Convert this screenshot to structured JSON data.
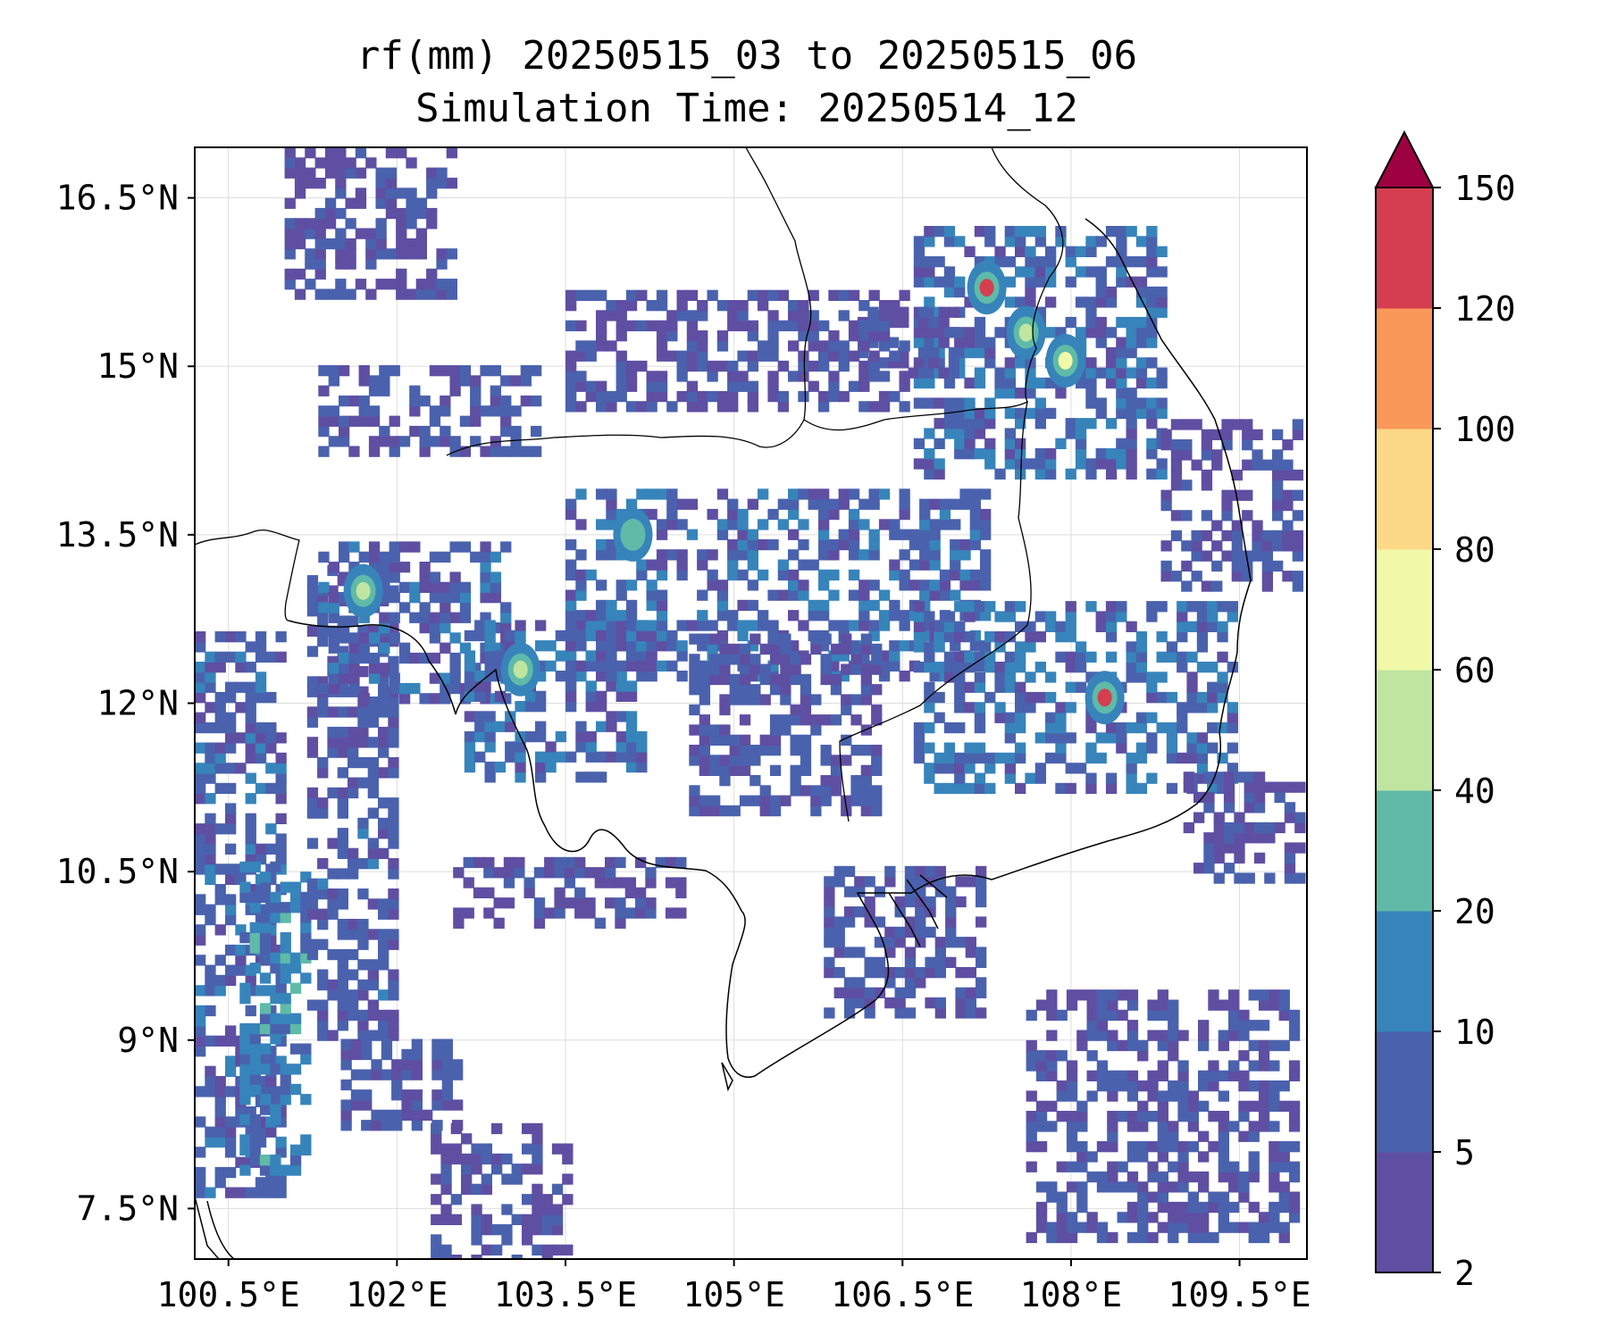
{
  "title": {
    "line1": "rf(mm) 20250515_03 to 20250515_06",
    "line2": "Simulation Time: 20250514_12"
  },
  "map": {
    "lon_range": [
      100.2,
      110.1
    ],
    "lat_range": [
      7.05,
      16.95
    ],
    "x_ticks": [
      "100.5°E",
      "102°E",
      "103.5°E",
      "105°E",
      "106.5°E",
      "108°E",
      "109.5°E"
    ],
    "x_tick_values": [
      100.5,
      102,
      103.5,
      105,
      106.5,
      108,
      109.5
    ],
    "y_ticks": [
      "7.5°N",
      "9°N",
      "10.5°N",
      "12°N",
      "13.5°N",
      "15°N",
      "16.5°N"
    ],
    "y_tick_values": [
      7.5,
      9,
      10.5,
      12,
      13.5,
      15,
      16.5
    ],
    "gridlines": true
  },
  "colorbar": {
    "label_values": [
      "2",
      "5",
      "10",
      "20",
      "40",
      "60",
      "80",
      "100",
      "120",
      "150"
    ],
    "colors": [
      "#5e4fa2",
      "#4a62ad",
      "#3784bb",
      "#5fbaa8",
      "#bfe5a0",
      "#f1f9a9",
      "#fbd986",
      "#f99858",
      "#d53e4f",
      "#9e0142"
    ],
    "extend": "max"
  },
  "chart_data": {
    "type": "heatmap",
    "variable": "rf(mm)",
    "title": "rf(mm) 20250515_03 to 20250515_06",
    "subtitle": "Simulation Time: 20250514_12",
    "levels": [
      2,
      5,
      10,
      20,
      40,
      60,
      80,
      100,
      120,
      150
    ],
    "xlim": [
      100.2,
      110.1
    ],
    "ylim": [
      7.05,
      16.95
    ],
    "peak_cells": [
      {
        "lon": 107.25,
        "lat": 15.7,
        "value": 130
      },
      {
        "lon": 107.95,
        "lat": 15.05,
        "value": 70
      },
      {
        "lon": 107.6,
        "lat": 15.3,
        "value": 50
      },
      {
        "lon": 108.3,
        "lat": 12.05,
        "value": 130
      },
      {
        "lon": 103.1,
        "lat": 12.3,
        "value": 50
      },
      {
        "lon": 101.7,
        "lat": 13.0,
        "value": 40
      },
      {
        "lon": 104.1,
        "lat": 13.5,
        "value": 30
      }
    ],
    "rain_regions": [
      {
        "lon": [
          100.2,
          101.0
        ],
        "lat": [
          7.6,
          12.6
        ],
        "value": 8
      },
      {
        "lon": [
          100.6,
          101.2
        ],
        "lat": [
          7.8,
          10.5
        ],
        "value": 15
      },
      {
        "lon": [
          101.2,
          102.0
        ],
        "lat": [
          9.0,
          13.2
        ],
        "value": 7
      },
      {
        "lon": [
          101.3,
          103.0
        ],
        "lat": [
          12.0,
          13.4
        ],
        "value": 8
      },
      {
        "lon": [
          102.6,
          104.2
        ],
        "lat": [
          11.3,
          12.7
        ],
        "value": 9
      },
      {
        "lon": [
          103.5,
          107.2
        ],
        "lat": [
          12.2,
          13.9
        ],
        "value": 9
      },
      {
        "lon": [
          104.6,
          106.3
        ],
        "lat": [
          11.0,
          12.6
        ],
        "value": 6
      },
      {
        "lon": [
          106.6,
          109.4
        ],
        "lat": [
          11.2,
          12.9
        ],
        "value": 10
      },
      {
        "lon": [
          106.6,
          108.8
        ],
        "lat": [
          14.0,
          16.2
        ],
        "value": 9
      },
      {
        "lon": [
          106.1,
          107.0
        ],
        "lat": [
          14.9,
          15.5
        ],
        "value": 6
      },
      {
        "lon": [
          107.6,
          110.0
        ],
        "lat": [
          7.2,
          9.4
        ],
        "value": 6
      },
      {
        "lon": [
          101.3,
          103.2
        ],
        "lat": [
          14.2,
          15.0
        ],
        "value": 6
      },
      {
        "lon": [
          102.5,
          104.5
        ],
        "lat": [
          10.0,
          10.6
        ],
        "value": 5
      },
      {
        "lon": [
          105.8,
          107.2
        ],
        "lat": [
          9.2,
          10.5
        ],
        "value": 6
      },
      {
        "lon": [
          101.0,
          102.5
        ],
        "lat": [
          15.6,
          16.9
        ],
        "value": 5
      },
      {
        "lon": [
          103.5,
          106.5
        ],
        "lat": [
          14.6,
          15.6
        ],
        "value": 5
      },
      {
        "lon": [
          102.3,
          103.5
        ],
        "lat": [
          7.0,
          8.2
        ],
        "value": 5
      },
      {
        "lon": [
          101.5,
          102.5
        ],
        "lat": [
          8.2,
          9.0
        ],
        "value": 6
      },
      {
        "lon": [
          109.0,
          110.0
        ],
        "lat": [
          10.4,
          11.3
        ],
        "value": 5
      },
      {
        "lon": [
          108.8,
          110.0
        ],
        "lat": [
          13.0,
          14.5
        ],
        "value": 5
      }
    ]
  }
}
